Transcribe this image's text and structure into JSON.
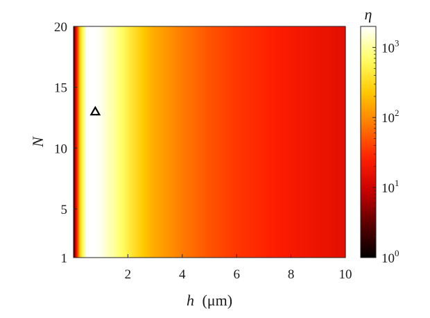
{
  "chart_data": {
    "type": "heatmap",
    "title": "",
    "xlabel_var": "h",
    "xlabel_unit": "(μm)",
    "ylabel": "N",
    "x_range": [
      0,
      10
    ],
    "y_range": [
      1,
      20
    ],
    "x_ticks": [
      2,
      4,
      6,
      8,
      10
    ],
    "y_ticks": [
      1,
      5,
      10,
      15,
      20
    ],
    "x_tick_labels": [
      "2",
      "4",
      "6",
      "8",
      "10"
    ],
    "y_tick_labels": [
      "1",
      "5",
      "10",
      "15",
      "20"
    ],
    "colorbar": {
      "label": "η",
      "scale": "log",
      "range": [
        1,
        2000
      ],
      "tick_values": [
        1,
        10,
        100,
        1000
      ],
      "tick_base": "10",
      "tick_exponents": [
        "0",
        "1",
        "2",
        "3"
      ],
      "colormap": [
        "#000000",
        "#5a0000",
        "#c80000",
        "#ff1e00",
        "#ff7800",
        "#ffc800",
        "#ffff64",
        "#ffffff"
      ]
    },
    "eta_profile_vs_h": {
      "h": [
        0.0,
        0.25,
        0.5,
        0.75,
        1.0,
        1.5,
        2.0,
        2.5,
        3.0,
        4.0,
        5.0,
        6.0,
        7.0,
        8.0,
        9.0,
        10.0
      ],
      "eta": [
        2,
        300,
        2000,
        2000,
        1800,
        1000,
        500,
        250,
        150,
        80,
        50,
        35,
        28,
        22,
        18,
        15
      ]
    },
    "dependence_on_N": "weak",
    "marker": {
      "shape": "triangle",
      "h": 0.8,
      "N": 13,
      "color": "#000000"
    }
  }
}
